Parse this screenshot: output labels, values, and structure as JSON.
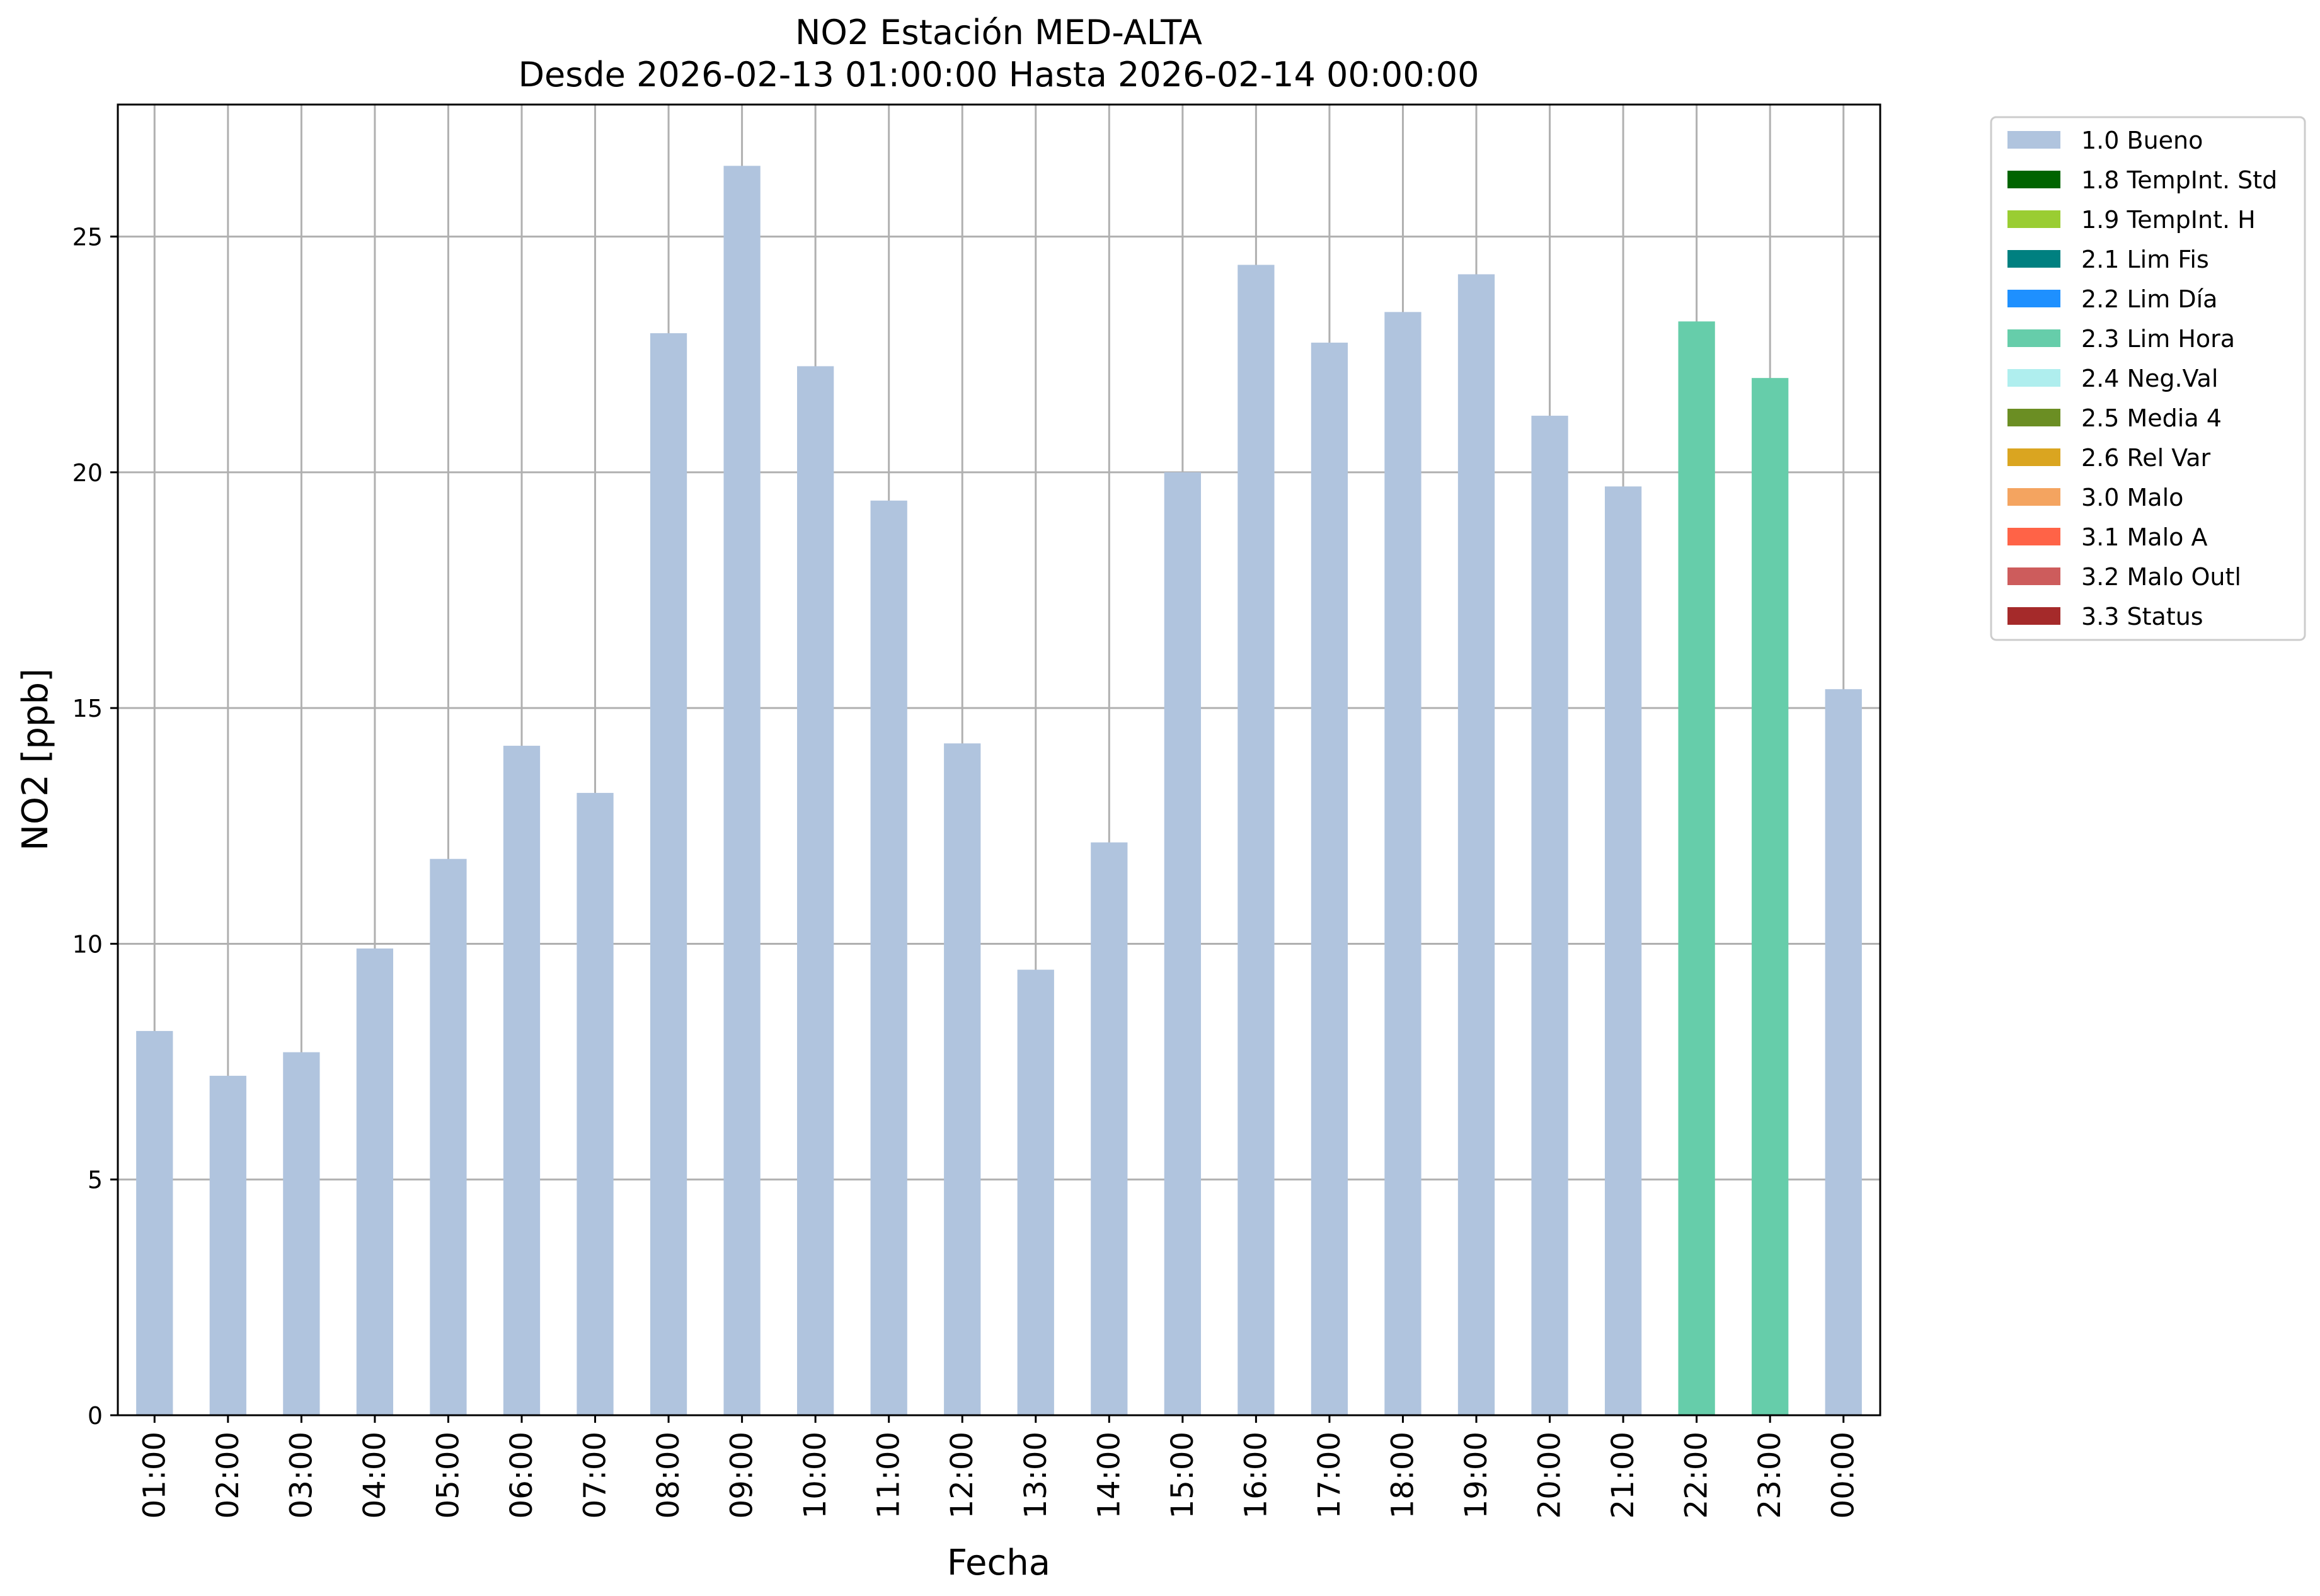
{
  "chart_data": {
    "type": "bar",
    "title": "NO2 Estación MED-ALTA",
    "subtitle": "Desde 2026-02-13 01:00:00 Hasta 2026-02-14 00:00:00",
    "xlabel": "Fecha",
    "ylabel": "NO2 [ppb]",
    "ylim": [
      0,
      27.8
    ],
    "yticks": [
      0,
      5,
      10,
      15,
      20,
      25
    ],
    "grid": true,
    "legend_position": "outside-right",
    "categories": [
      "01:00",
      "02:00",
      "03:00",
      "04:00",
      "05:00",
      "06:00",
      "07:00",
      "08:00",
      "09:00",
      "10:00",
      "11:00",
      "12:00",
      "13:00",
      "14:00",
      "15:00",
      "16:00",
      "17:00",
      "18:00",
      "19:00",
      "20:00",
      "21:00",
      "22:00",
      "23:00",
      "00:00"
    ],
    "values": [
      8.15,
      7.2,
      7.7,
      9.9,
      11.8,
      14.2,
      13.2,
      22.95,
      26.5,
      22.25,
      19.4,
      14.25,
      9.45,
      12.15,
      20.0,
      24.4,
      22.75,
      23.4,
      24.2,
      21.2,
      19.7,
      23.2,
      22.0,
      15.4
    ],
    "flags": [
      "1.0 Bueno",
      "1.0 Bueno",
      "1.0 Bueno",
      "1.0 Bueno",
      "1.0 Bueno",
      "1.0 Bueno",
      "1.0 Bueno",
      "1.0 Bueno",
      "1.0 Bueno",
      "1.0 Bueno",
      "1.0 Bueno",
      "1.0 Bueno",
      "1.0 Bueno",
      "1.0 Bueno",
      "1.0 Bueno",
      "1.0 Bueno",
      "1.0 Bueno",
      "1.0 Bueno",
      "1.0 Bueno",
      "1.0 Bueno",
      "1.0 Bueno",
      "2.3 Lim Hora",
      "2.3 Lim Hora",
      "1.0 Bueno"
    ],
    "legend": [
      {
        "label": "1.0 Bueno",
        "color": "#b0c4de"
      },
      {
        "label": "1.8 TempInt. Std",
        "color": "#006400"
      },
      {
        "label": "1.9 TempInt. H",
        "color": "#9acd32"
      },
      {
        "label": "2.1 Lim Fis",
        "color": "#008080"
      },
      {
        "label": "2.2 Lim Día",
        "color": "#1e90ff"
      },
      {
        "label": "2.3 Lim Hora",
        "color": "#66cdaa"
      },
      {
        "label": "2.4 Neg.Val",
        "color": "#afeeee"
      },
      {
        "label": "2.5 Media 4",
        "color": "#6b8e23"
      },
      {
        "label": "2.6 Rel Var",
        "color": "#daa520"
      },
      {
        "label": "3.0 Malo",
        "color": "#f4a460"
      },
      {
        "label": "3.1 Malo A",
        "color": "#ff6347"
      },
      {
        "label": "3.2 Malo Outl",
        "color": "#cd5c5c"
      },
      {
        "label": "3.3 Status",
        "color": "#a52a2a"
      }
    ]
  }
}
